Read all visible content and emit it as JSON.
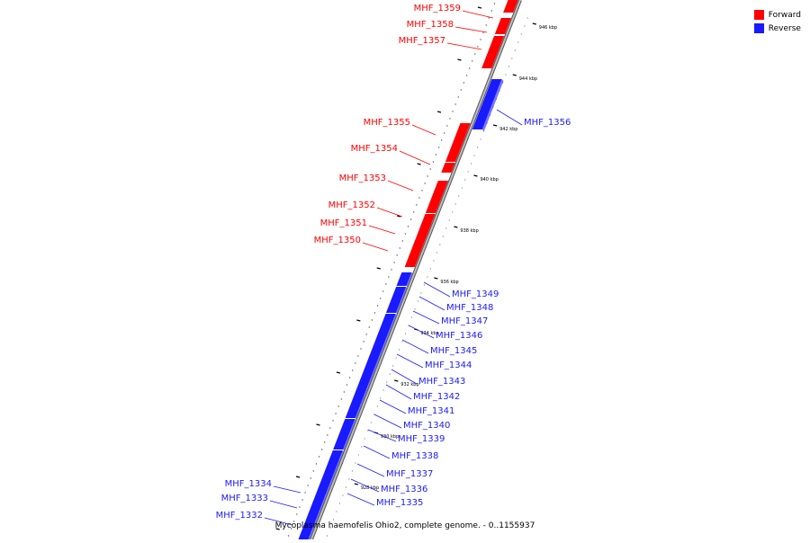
{
  "colors": {
    "forward": "#ff0000",
    "reverse": "#1a1aff",
    "backbone": "#909090"
  },
  "legend": [
    {
      "label": "Forward",
      "color": "#ff0000"
    },
    {
      "label": "Reverse",
      "color": "#1a1aff"
    }
  ],
  "caption": "Mycoplasma haemofelis Ohio2, complete genome. - 0..1155937",
  "scale_ticks": [
    "946 kbp",
    "944 kbp",
    "942 kbp",
    "940 kbp",
    "938 kbp",
    "936 kbp",
    "934 kbp",
    "932 kbp",
    "930 kbp",
    "928 kbp"
  ],
  "genes": [
    {
      "name": "MHF_1359",
      "strand": "forward"
    },
    {
      "name": "MHF_1358",
      "strand": "forward"
    },
    {
      "name": "MHF_1357",
      "strand": "forward"
    },
    {
      "name": "MHF_1356",
      "strand": "reverse"
    },
    {
      "name": "MHF_1355",
      "strand": "forward"
    },
    {
      "name": "MHF_1354",
      "strand": "forward"
    },
    {
      "name": "MHF_1353",
      "strand": "forward"
    },
    {
      "name": "MHF_1352",
      "strand": "forward"
    },
    {
      "name": "MHF_1351",
      "strand": "forward"
    },
    {
      "name": "MHF_1350",
      "strand": "forward"
    },
    {
      "name": "MHF_1349",
      "strand": "reverse"
    },
    {
      "name": "MHF_1348",
      "strand": "reverse"
    },
    {
      "name": "MHF_1347",
      "strand": "reverse"
    },
    {
      "name": "MHF_1346",
      "strand": "reverse"
    },
    {
      "name": "MHF_1345",
      "strand": "reverse"
    },
    {
      "name": "MHF_1344",
      "strand": "reverse"
    },
    {
      "name": "MHF_1343",
      "strand": "reverse"
    },
    {
      "name": "MHF_1342",
      "strand": "reverse"
    },
    {
      "name": "MHF_1341",
      "strand": "reverse"
    },
    {
      "name": "MHF_1340",
      "strand": "reverse"
    },
    {
      "name": "MHF_1339",
      "strand": "reverse"
    },
    {
      "name": "MHF_1338",
      "strand": "reverse"
    },
    {
      "name": "MHF_1337",
      "strand": "reverse"
    },
    {
      "name": "MHF_1336",
      "strand": "reverse"
    },
    {
      "name": "MHF_1335",
      "strand": "reverse"
    },
    {
      "name": "MHF_1334",
      "strand": "reverse"
    },
    {
      "name": "MHF_1333",
      "strand": "reverse"
    },
    {
      "name": "MHF_1332",
      "strand": "reverse"
    }
  ]
}
